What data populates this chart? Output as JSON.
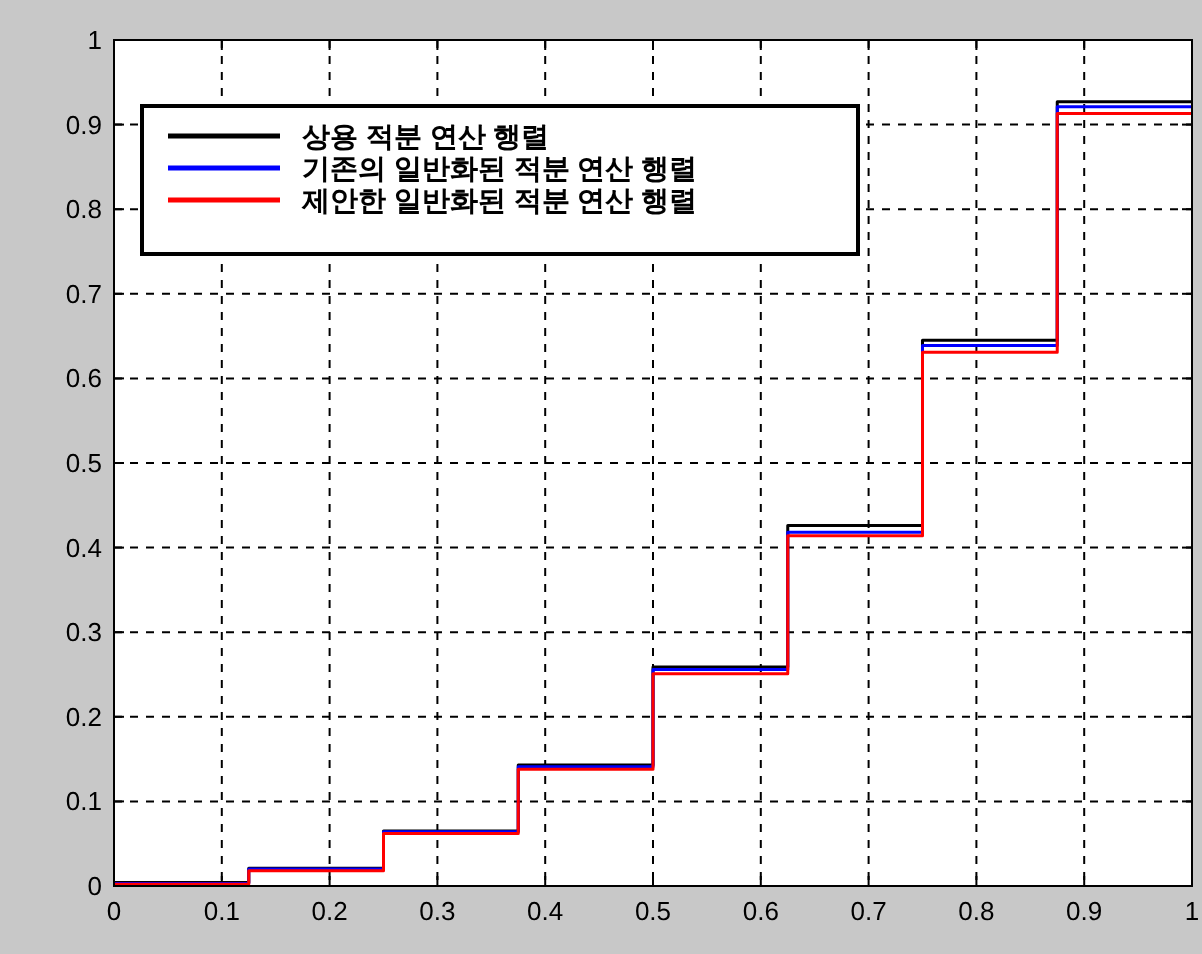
{
  "chart_data": {
    "type": "step",
    "x": [
      0,
      0.125,
      0.25,
      0.375,
      0.5,
      0.625,
      0.75,
      0.875,
      1
    ],
    "series": [
      {
        "name": "상용 적분 연산 행렬",
        "color": "#000000",
        "values": [
          0.004,
          0.021,
          0.065,
          0.143,
          0.259,
          0.426,
          0.645,
          0.927,
          0.927
        ]
      },
      {
        "name": "기존의 일반화된 적분 연산 행렬",
        "color": "#0000ff",
        "values": [
          0.003,
          0.02,
          0.064,
          0.141,
          0.256,
          0.418,
          0.639,
          0.921,
          0.921
        ]
      },
      {
        "name": "제안한 일반화된 적분 연산 행렬",
        "color": "#ff0000",
        "values": [
          0.002,
          0.018,
          0.062,
          0.138,
          0.251,
          0.414,
          0.631,
          0.913,
          0.913
        ]
      }
    ],
    "xlim": [
      0,
      1
    ],
    "ylim": [
      0,
      1
    ],
    "xticks": [
      0,
      0.1,
      0.2,
      0.3,
      0.4,
      0.5,
      0.6,
      0.7,
      0.8,
      0.9,
      1
    ],
    "yticks": [
      0,
      0.1,
      0.2,
      0.3,
      0.4,
      0.5,
      0.6,
      0.7,
      0.8,
      0.9,
      1
    ],
    "grid": true,
    "legend": "top left",
    "line_style": "solid"
  }
}
